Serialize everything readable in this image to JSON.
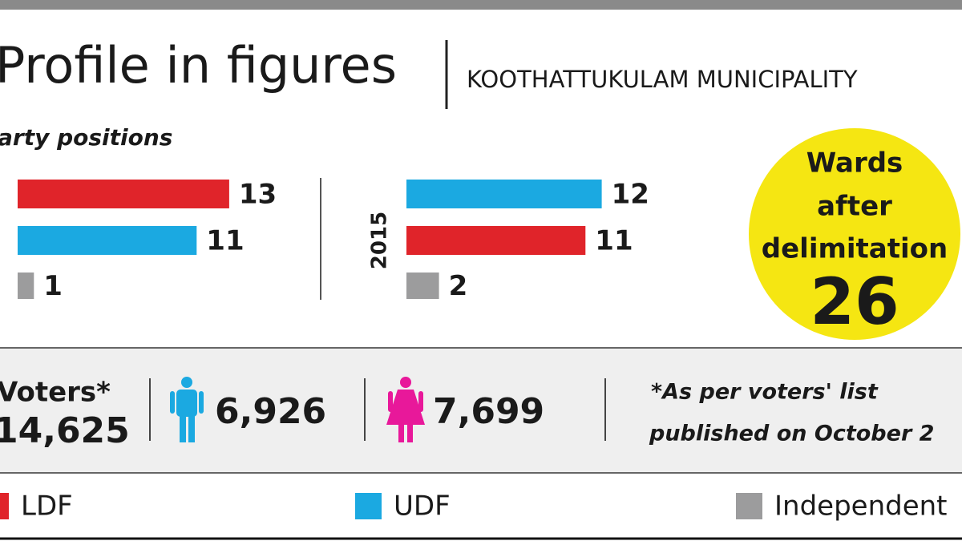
{
  "header": {
    "title": "Profile in figures",
    "subtitle": "KOOTHATTUKULAM MUNICIPALITY"
  },
  "section_title": "arty positions",
  "chart_data": [
    {
      "type": "bar",
      "orientation": "horizontal",
      "series": [
        {
          "name": "LDF",
          "color": "#e0242a",
          "values": [
            13
          ]
        },
        {
          "name": "UDF",
          "color": "#1ba9e1",
          "values": [
            11
          ]
        },
        {
          "name": "Independent",
          "color": "#9c9c9d",
          "values": [
            1
          ]
        }
      ]
    },
    {
      "type": "bar",
      "orientation": "horizontal",
      "title": "2015",
      "series": [
        {
          "name": "UDF",
          "color": "#1ba9e1",
          "values": [
            12
          ]
        },
        {
          "name": "LDF",
          "color": "#e0242a",
          "values": [
            11
          ]
        },
        {
          "name": "Independent",
          "color": "#9c9c9d",
          "values": [
            2
          ]
        }
      ]
    }
  ],
  "wards": {
    "label": [
      "Wards",
      "after",
      "delimitation"
    ],
    "value": "26"
  },
  "voters": {
    "label": "Voters*",
    "total": "14,625",
    "male": "6,926",
    "female": "7,699",
    "note": [
      "*As per voters' list",
      "published on October 2"
    ]
  }
}
